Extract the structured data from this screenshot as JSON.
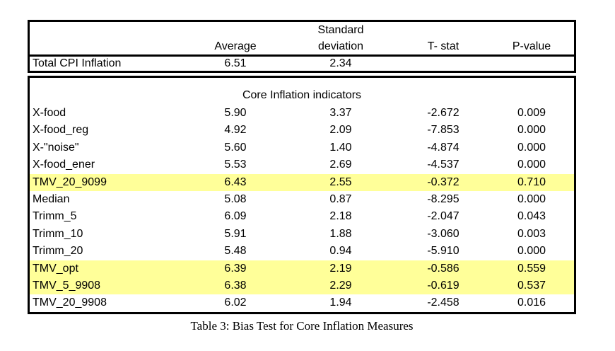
{
  "table": {
    "columns": {
      "label": "",
      "average": "Average",
      "std_dev_line1": "Standard",
      "std_dev_line2": "deviation",
      "t_stat": "T- stat",
      "p_value": "P-value"
    },
    "total_row": {
      "label": "Total CPI Inflation",
      "average": "6.51",
      "std_dev": "2.34",
      "t_stat": "",
      "p_value": ""
    },
    "section_title": "Core Inflation indicators",
    "rows": [
      {
        "label": "X-food",
        "average": "5.90",
        "std_dev": "3.37",
        "t_stat": "-2.672",
        "p_value": "0.009",
        "highlighted": false
      },
      {
        "label": "X-food_reg",
        "average": "4.92",
        "std_dev": "2.09",
        "t_stat": "-7.853",
        "p_value": "0.000",
        "highlighted": false
      },
      {
        "label": "X-\"noise\"",
        "average": "5.60",
        "std_dev": "1.40",
        "t_stat": "-4.874",
        "p_value": "0.000",
        "highlighted": false
      },
      {
        "label": "X-food_ener",
        "average": "5.53",
        "std_dev": "2.69",
        "t_stat": "-4.537",
        "p_value": "0.000",
        "highlighted": false
      },
      {
        "label": "TMV_20_9099",
        "average": "6.43",
        "std_dev": "2.55",
        "t_stat": "-0.372",
        "p_value": "0.710",
        "highlighted": true
      },
      {
        "label": "Median",
        "average": "5.08",
        "std_dev": "0.87",
        "t_stat": "-8.295",
        "p_value": "0.000",
        "highlighted": false
      },
      {
        "label": "Trimm_5",
        "average": "6.09",
        "std_dev": "2.18",
        "t_stat": "-2.047",
        "p_value": "0.043",
        "highlighted": false
      },
      {
        "label": "Trimm_10",
        "average": "5.91",
        "std_dev": "1.88",
        "t_stat": "-3.060",
        "p_value": "0.003",
        "highlighted": false
      },
      {
        "label": "Trimm_20",
        "average": "5.48",
        "std_dev": "0.94",
        "t_stat": "-5.910",
        "p_value": "0.000",
        "highlighted": false
      },
      {
        "label": "TMV_opt",
        "average": "6.39",
        "std_dev": "2.19",
        "t_stat": "-0.586",
        "p_value": "0.559",
        "highlighted": true
      },
      {
        "label": "TMV_5_9908",
        "average": "6.38",
        "std_dev": "2.29",
        "t_stat": "-0.619",
        "p_value": "0.537",
        "highlighted": true
      },
      {
        "label": "TMV_20_9908",
        "average": "6.02",
        "std_dev": "1.94",
        "t_stat": "-2.458",
        "p_value": "0.016",
        "highlighted": false
      }
    ],
    "highlight_color": "#ffff99"
  },
  "caption": "Table 3: Bias Test for Core Inflation Measures"
}
